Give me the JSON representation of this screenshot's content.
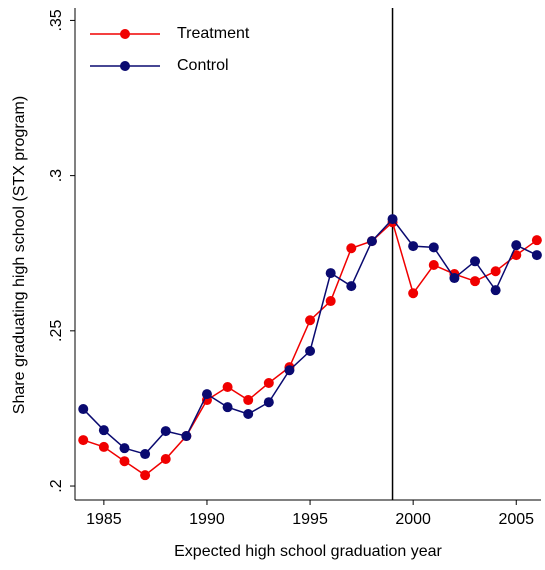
{
  "chart_data": {
    "type": "line",
    "x_label": "Expected high school graduation year",
    "y_label": "Share graduating high school (STX program)",
    "x": [
      1984,
      1985,
      1986,
      1987,
      1988,
      1989,
      1990,
      1991,
      1992,
      1993,
      1994,
      1995,
      1996,
      1997,
      1998,
      1999,
      2000,
      2001,
      2002,
      2003,
      2004,
      2005,
      2006
    ],
    "series": [
      {
        "name": "Treatment",
        "color": "#f00000",
        "values": [
          0.2148,
          0.2126,
          0.208,
          0.2035,
          0.2087,
          0.2161,
          0.2277,
          0.2319,
          0.2277,
          0.2332,
          0.2383,
          0.2534,
          0.2596,
          0.2766,
          0.2789,
          0.285,
          0.2621,
          0.2712,
          0.2683,
          0.266,
          0.2692,
          0.2744,
          0.2792
        ]
      },
      {
        "name": "Control",
        "color": "#0a0a70",
        "values": [
          0.2248,
          0.218,
          0.2122,
          0.2103,
          0.2177,
          0.2161,
          0.2296,
          0.2254,
          0.2232,
          0.227,
          0.2373,
          0.2435,
          0.2686,
          0.2644,
          0.2789,
          0.286,
          0.2773,
          0.2769,
          0.267,
          0.2724,
          0.2631,
          0.2776,
          0.2744
        ]
      }
    ],
    "xlim": [
      1983.6,
      2006.2
    ],
    "xticks": [
      1985,
      1990,
      1995,
      2000,
      2005
    ],
    "ylim": [
      0.1955,
      0.354
    ],
    "yticks": [
      {
        "value": 0.2,
        "label": ".2"
      },
      {
        "value": 0.25,
        "label": ".25"
      },
      {
        "value": 0.3,
        "label": ".3"
      },
      {
        "value": 0.35,
        "label": ".35"
      }
    ],
    "vline": 1999,
    "vline_color": "#000000",
    "grid": false,
    "legend": "upper-left"
  }
}
